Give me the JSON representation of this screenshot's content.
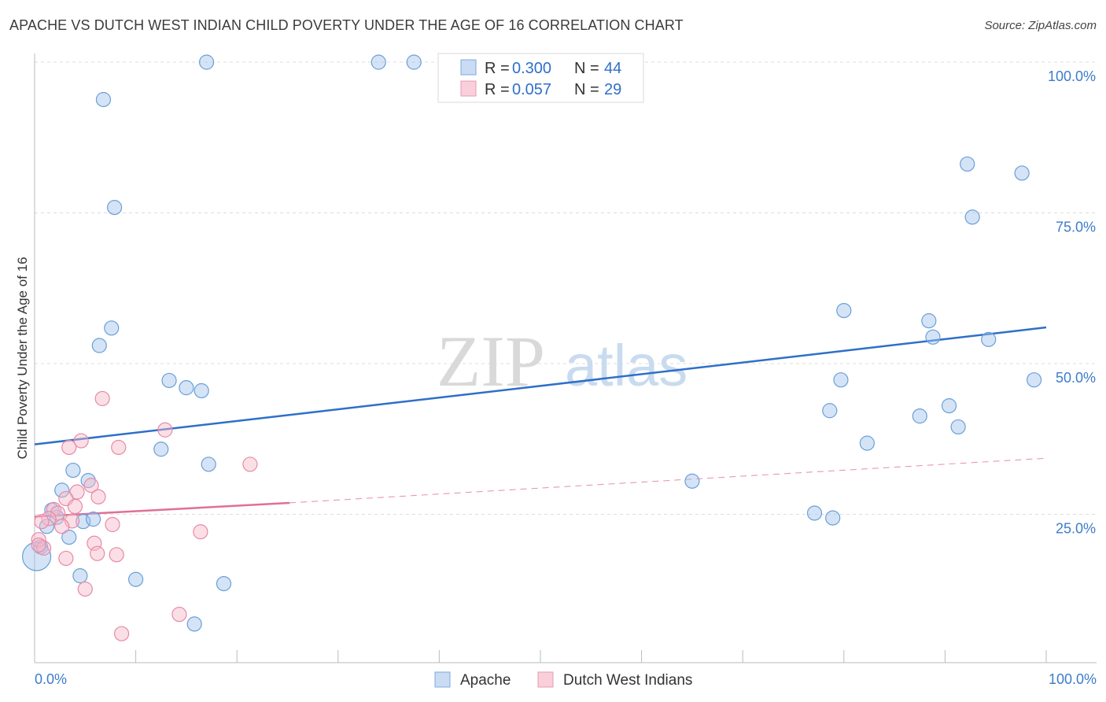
{
  "title": "APACHE VS DUTCH WEST INDIAN CHILD POVERTY UNDER THE AGE OF 16 CORRELATION CHART",
  "source": "Source: ZipAtlas.com",
  "watermark": {
    "zip": "ZIP",
    "atlas": "atlas"
  },
  "chart_data": {
    "type": "scatter",
    "title": "APACHE VS DUTCH WEST INDIAN CHILD POVERTY UNDER THE AGE OF 16 CORRELATION CHART",
    "xlabel": "",
    "ylabel": "Child Poverty Under the Age of 16",
    "xlim": [
      0,
      100
    ],
    "ylim": [
      0,
      102
    ],
    "x_tick_labels": {
      "left": "0.0%",
      "right": "100.0%"
    },
    "y_ticks": [
      {
        "value": 25,
        "label": "25.0%"
      },
      {
        "value": 50,
        "label": "50.0%"
      },
      {
        "value": 75,
        "label": "75.0%"
      },
      {
        "value": 100,
        "label": "100.0%"
      }
    ],
    "grid": true,
    "legend_position": "top-center",
    "stats": [
      {
        "r_label": "R =",
        "r": "0.300",
        "n_label": "N =",
        "n": "44"
      },
      {
        "r_label": "R =",
        "r": "0.057",
        "n_label": "N =",
        "n": "29"
      }
    ],
    "series": [
      {
        "name": "Apache",
        "color": "#9fc3ec",
        "stroke": "#6a9fd8",
        "trend_color": "#2f6fc9",
        "trend": {
          "x0": 0,
          "y0": 36.6,
          "x1": 100,
          "y1": 56
        },
        "points": [
          [
            17,
            100
          ],
          [
            34,
            100
          ],
          [
            37.5,
            100
          ],
          [
            6.8,
            93.8
          ],
          [
            7.9,
            75.9
          ],
          [
            7.6,
            55.9
          ],
          [
            6.4,
            53
          ],
          [
            13.3,
            47.2
          ],
          [
            15,
            46
          ],
          [
            16.5,
            45.5
          ],
          [
            12.5,
            35.8
          ],
          [
            17.2,
            33.3
          ],
          [
            3.8,
            32.3
          ],
          [
            5.3,
            30.6
          ],
          [
            2.7,
            29
          ],
          [
            1.7,
            25.7
          ],
          [
            4.8,
            23.8
          ],
          [
            5.8,
            24.2
          ],
          [
            2.2,
            24.5
          ],
          [
            1.2,
            23
          ],
          [
            3.4,
            21.2
          ],
          [
            0.6,
            19.6
          ],
          [
            0.2,
            18
          ],
          [
            4.5,
            14.8
          ],
          [
            10,
            14.2
          ],
          [
            18.7,
            13.5
          ],
          [
            15.8,
            6.8
          ],
          [
            65,
            30.5
          ],
          [
            80,
            58.8
          ],
          [
            79.7,
            47.3
          ],
          [
            78.6,
            42.2
          ],
          [
            82.3,
            36.8
          ],
          [
            87.5,
            41.3
          ],
          [
            88.4,
            57.1
          ],
          [
            88.8,
            54.4
          ],
          [
            90.4,
            43
          ],
          [
            91.3,
            39.5
          ],
          [
            94.3,
            54
          ],
          [
            92.2,
            83.1
          ],
          [
            92.7,
            74.3
          ],
          [
            97.6,
            81.6
          ],
          [
            98.8,
            47.3
          ],
          [
            77.1,
            25.2
          ],
          [
            78.9,
            24.4
          ]
        ]
      },
      {
        "name": "Dutch West Indians",
        "color": "#f6b8c9",
        "stroke": "#e88aa5",
        "trend_color": "#e07096",
        "trend": {
          "x0": 0,
          "y0": 24.6,
          "x1": 25.2,
          "y1": 26.9
        },
        "trend_ext": {
          "x0": 25.2,
          "y0": 26.9,
          "x1": 100,
          "y1": 34.3
        },
        "points": [
          [
            6.7,
            44.2
          ],
          [
            12.9,
            39
          ],
          [
            4.6,
            37.2
          ],
          [
            8.3,
            36.1
          ],
          [
            3.4,
            36.1
          ],
          [
            21.3,
            33.3
          ],
          [
            5.6,
            29.8
          ],
          [
            4.2,
            28.7
          ],
          [
            6.3,
            27.9
          ],
          [
            3.1,
            27.6
          ],
          [
            4,
            26.3
          ],
          [
            1.9,
            25.8
          ],
          [
            2.3,
            25.2
          ],
          [
            1.4,
            24.3
          ],
          [
            0.7,
            23.8
          ],
          [
            3.7,
            23.9
          ],
          [
            2.7,
            23
          ],
          [
            7.7,
            23.3
          ],
          [
            16.4,
            22.1
          ],
          [
            0.4,
            20.8
          ],
          [
            5.9,
            20.2
          ],
          [
            0.9,
            19.4
          ],
          [
            6.2,
            18.5
          ],
          [
            8.1,
            18.3
          ],
          [
            3.1,
            17.7
          ],
          [
            5,
            12.6
          ],
          [
            14.3,
            8.4
          ],
          [
            8.6,
            5.2
          ],
          [
            0.4,
            19.9
          ]
        ]
      }
    ]
  }
}
